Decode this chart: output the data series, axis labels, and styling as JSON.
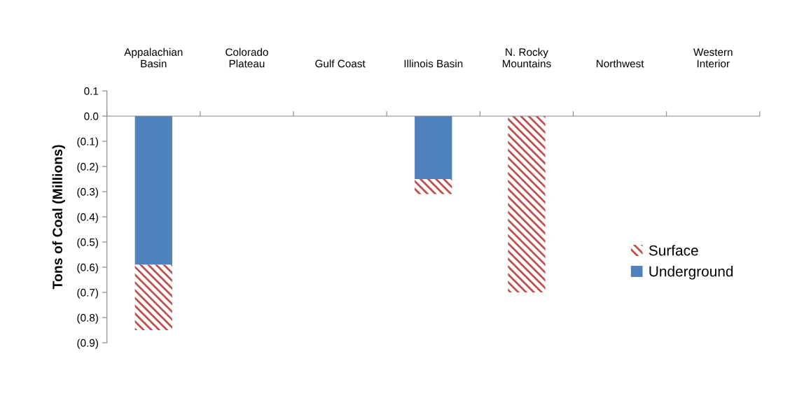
{
  "chart_data": {
    "type": "bar",
    "stacked": true,
    "ylabel": "Tons of Coal (Millions)",
    "categories": [
      "Appalachian\nBasin",
      "Colorado\nPlateau",
      "Gulf Coast",
      "Illinois Basin",
      "N. Rocky\nMountains",
      "Northwest",
      "Western\nInterior"
    ],
    "series": [
      {
        "name": "Underground",
        "color": "#4f81bd",
        "values": [
          -0.59,
          0,
          0,
          -0.25,
          0,
          0,
          0
        ]
      },
      {
        "name": "Surface",
        "color": "#c0504d",
        "values": [
          -0.26,
          0,
          0,
          -0.06,
          -0.7,
          0,
          0
        ]
      }
    ],
    "ylim": [
      -0.9,
      0.1
    ],
    "yticks": [
      {
        "value": 0.1,
        "label": "0.1"
      },
      {
        "value": 0,
        "label": "0.0"
      },
      {
        "value": -0.1,
        "label": "(0.1)"
      },
      {
        "value": -0.2,
        "label": "(0.2)"
      },
      {
        "value": -0.3,
        "label": "(0.3)"
      },
      {
        "value": -0.4,
        "label": "(0.4)"
      },
      {
        "value": -0.5,
        "label": "(0.5)"
      },
      {
        "value": -0.6,
        "label": "(0.6)"
      },
      {
        "value": -0.7,
        "label": "(0.7)"
      },
      {
        "value": -0.8,
        "label": "(0.8)"
      },
      {
        "value": -0.9,
        "label": "(0.9)"
      }
    ],
    "legend": "right"
  }
}
